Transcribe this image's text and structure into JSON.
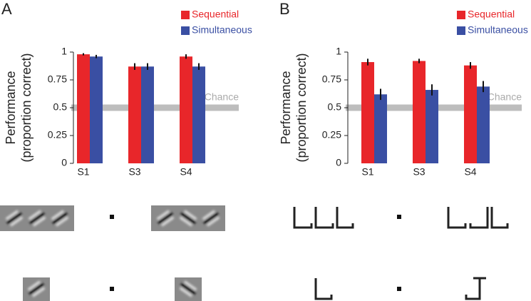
{
  "chart_data": [
    {
      "type": "bar",
      "panel_label": "A",
      "y_label": [
        "Performance",
        "(proportion correct)"
      ],
      "categories": [
        "S1",
        "S3",
        "S4"
      ],
      "series": [
        {
          "name": "Sequential",
          "color": "#e8262a",
          "values": [
            0.98,
            0.87,
            0.96
          ],
          "errors": [
            0.01,
            0.03,
            0.02
          ]
        },
        {
          "name": "Simultaneous",
          "color": "#3a4fa3",
          "values": [
            0.96,
            0.87,
            0.87
          ],
          "errors": [
            0.015,
            0.03,
            0.03
          ]
        }
      ],
      "chance": {
        "value": 0.5,
        "label": "Chance"
      },
      "ylim": [
        0,
        1
      ],
      "yticks": [
        0,
        0.25,
        0.5,
        0.75,
        1
      ]
    },
    {
      "type": "bar",
      "panel_label": "B",
      "y_label": [
        "Performance",
        "(proportion correct)"
      ],
      "categories": [
        "S1",
        "S3",
        "S4"
      ],
      "series": [
        {
          "name": "Sequential",
          "color": "#e8262a",
          "values": [
            0.91,
            0.92,
            0.88
          ],
          "errors": [
            0.03,
            0.02,
            0.03
          ]
        },
        {
          "name": "Simultaneous",
          "color": "#3a4fa3",
          "values": [
            0.62,
            0.66,
            0.69
          ],
          "errors": [
            0.05,
            0.05,
            0.05
          ]
        }
      ],
      "chance": {
        "value": 0.5,
        "label": "Chance"
      },
      "ylim": [
        0,
        1
      ],
      "yticks": [
        0,
        0.25,
        0.5,
        0.75,
        1
      ]
    }
  ]
}
